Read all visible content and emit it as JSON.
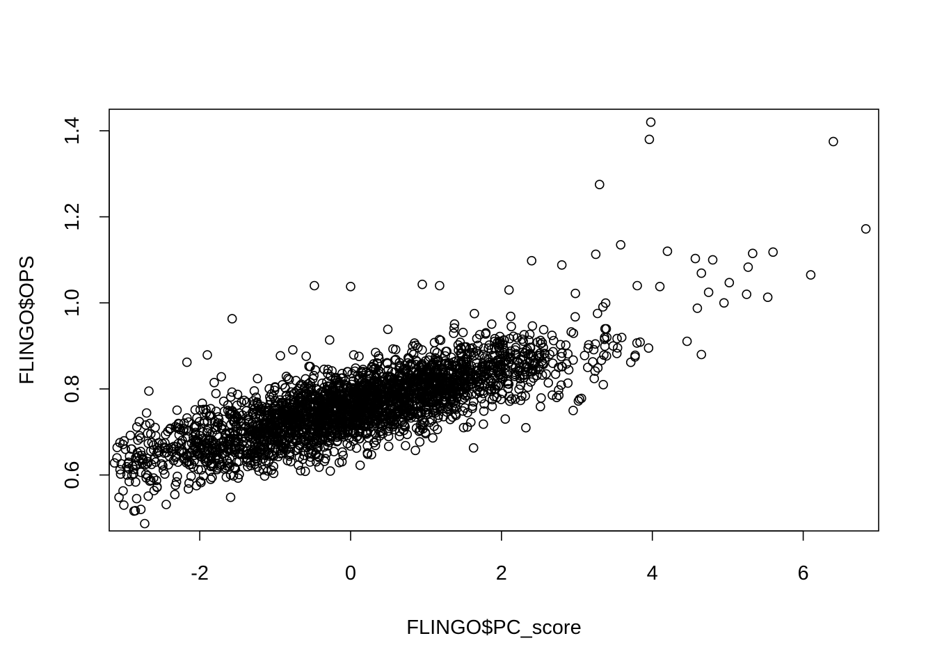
{
  "chart_data": {
    "type": "scatter",
    "xlabel": "FLINGO$PC_score",
    "ylabel": "FLINGO$OPS",
    "xlim": [
      -3.2,
      7.0
    ],
    "ylim": [
      0.47,
      1.45
    ],
    "x_ticks": [
      "-2",
      "0",
      "2",
      "4",
      "6"
    ],
    "y_ticks": [
      "0.6",
      "0.8",
      "1.0",
      "1.2",
      "1.4"
    ],
    "grid": false,
    "legend": "none",
    "marker": "open-circle",
    "point_color": "#000000",
    "bulk_trend": {
      "description": "dense cloud of several thousand points along a positive linear trend",
      "slope": 0.045,
      "intercept": 0.755,
      "x_range": [
        -3.1,
        5.0
      ],
      "y_spread_sd": 0.045
    },
    "outliers": [
      {
        "x": 3.98,
        "y": 1.42
      },
      {
        "x": 3.96,
        "y": 1.38
      },
      {
        "x": 6.4,
        "y": 1.375
      },
      {
        "x": 3.3,
        "y": 1.275
      },
      {
        "x": 6.83,
        "y": 1.172
      },
      {
        "x": 5.6,
        "y": 1.118
      },
      {
        "x": 5.33,
        "y": 1.115
      },
      {
        "x": 6.1,
        "y": 1.065
      },
      {
        "x": 5.27,
        "y": 1.083
      },
      {
        "x": 5.25,
        "y": 1.02
      },
      {
        "x": 5.53,
        "y": 1.013
      },
      {
        "x": 5.02,
        "y": 1.047
      },
      {
        "x": 4.95,
        "y": 1.0
      },
      {
        "x": 4.8,
        "y": 1.1
      },
      {
        "x": 4.57,
        "y": 1.103
      },
      {
        "x": 4.65,
        "y": 1.069
      },
      {
        "x": 4.2,
        "y": 1.12
      },
      {
        "x": 3.58,
        "y": 1.135
      },
      {
        "x": 3.25,
        "y": 1.113
      },
      {
        "x": 2.4,
        "y": 1.098
      },
      {
        "x": 2.8,
        "y": 1.088
      },
      {
        "x": 4.65,
        "y": 0.88
      },
      {
        "x": 3.35,
        "y": 0.81
      },
      {
        "x": 1.63,
        "y": 0.663
      },
      {
        "x": -0.48,
        "y": 1.04
      },
      {
        "x": 0.0,
        "y": 1.038
      },
      {
        "x": -1.57,
        "y": 0.963
      },
      {
        "x": -2.73,
        "y": 0.487
      },
      {
        "x": -2.78,
        "y": 0.52
      },
      {
        "x": -3.07,
        "y": 0.548
      },
      {
        "x": -2.92,
        "y": 0.692
      },
      {
        "x": -3.13,
        "y": 0.628
      },
      {
        "x": -2.17,
        "y": 0.862
      },
      {
        "x": -1.9,
        "y": 0.879
      },
      {
        "x": -0.93,
        "y": 0.877
      },
      {
        "x": 0.95,
        "y": 1.043
      },
      {
        "x": 1.18,
        "y": 1.04
      },
      {
        "x": 2.1,
        "y": 1.03
      },
      {
        "x": 2.98,
        "y": 1.022
      },
      {
        "x": 3.8,
        "y": 1.04
      },
      {
        "x": 4.1,
        "y": 1.038
      },
      {
        "x": 3.95,
        "y": 0.895
      },
      {
        "x": 3.02,
        "y": 0.772
      },
      {
        "x": 2.95,
        "y": 0.75
      },
      {
        "x": 2.05,
        "y": 0.73
      }
    ]
  }
}
